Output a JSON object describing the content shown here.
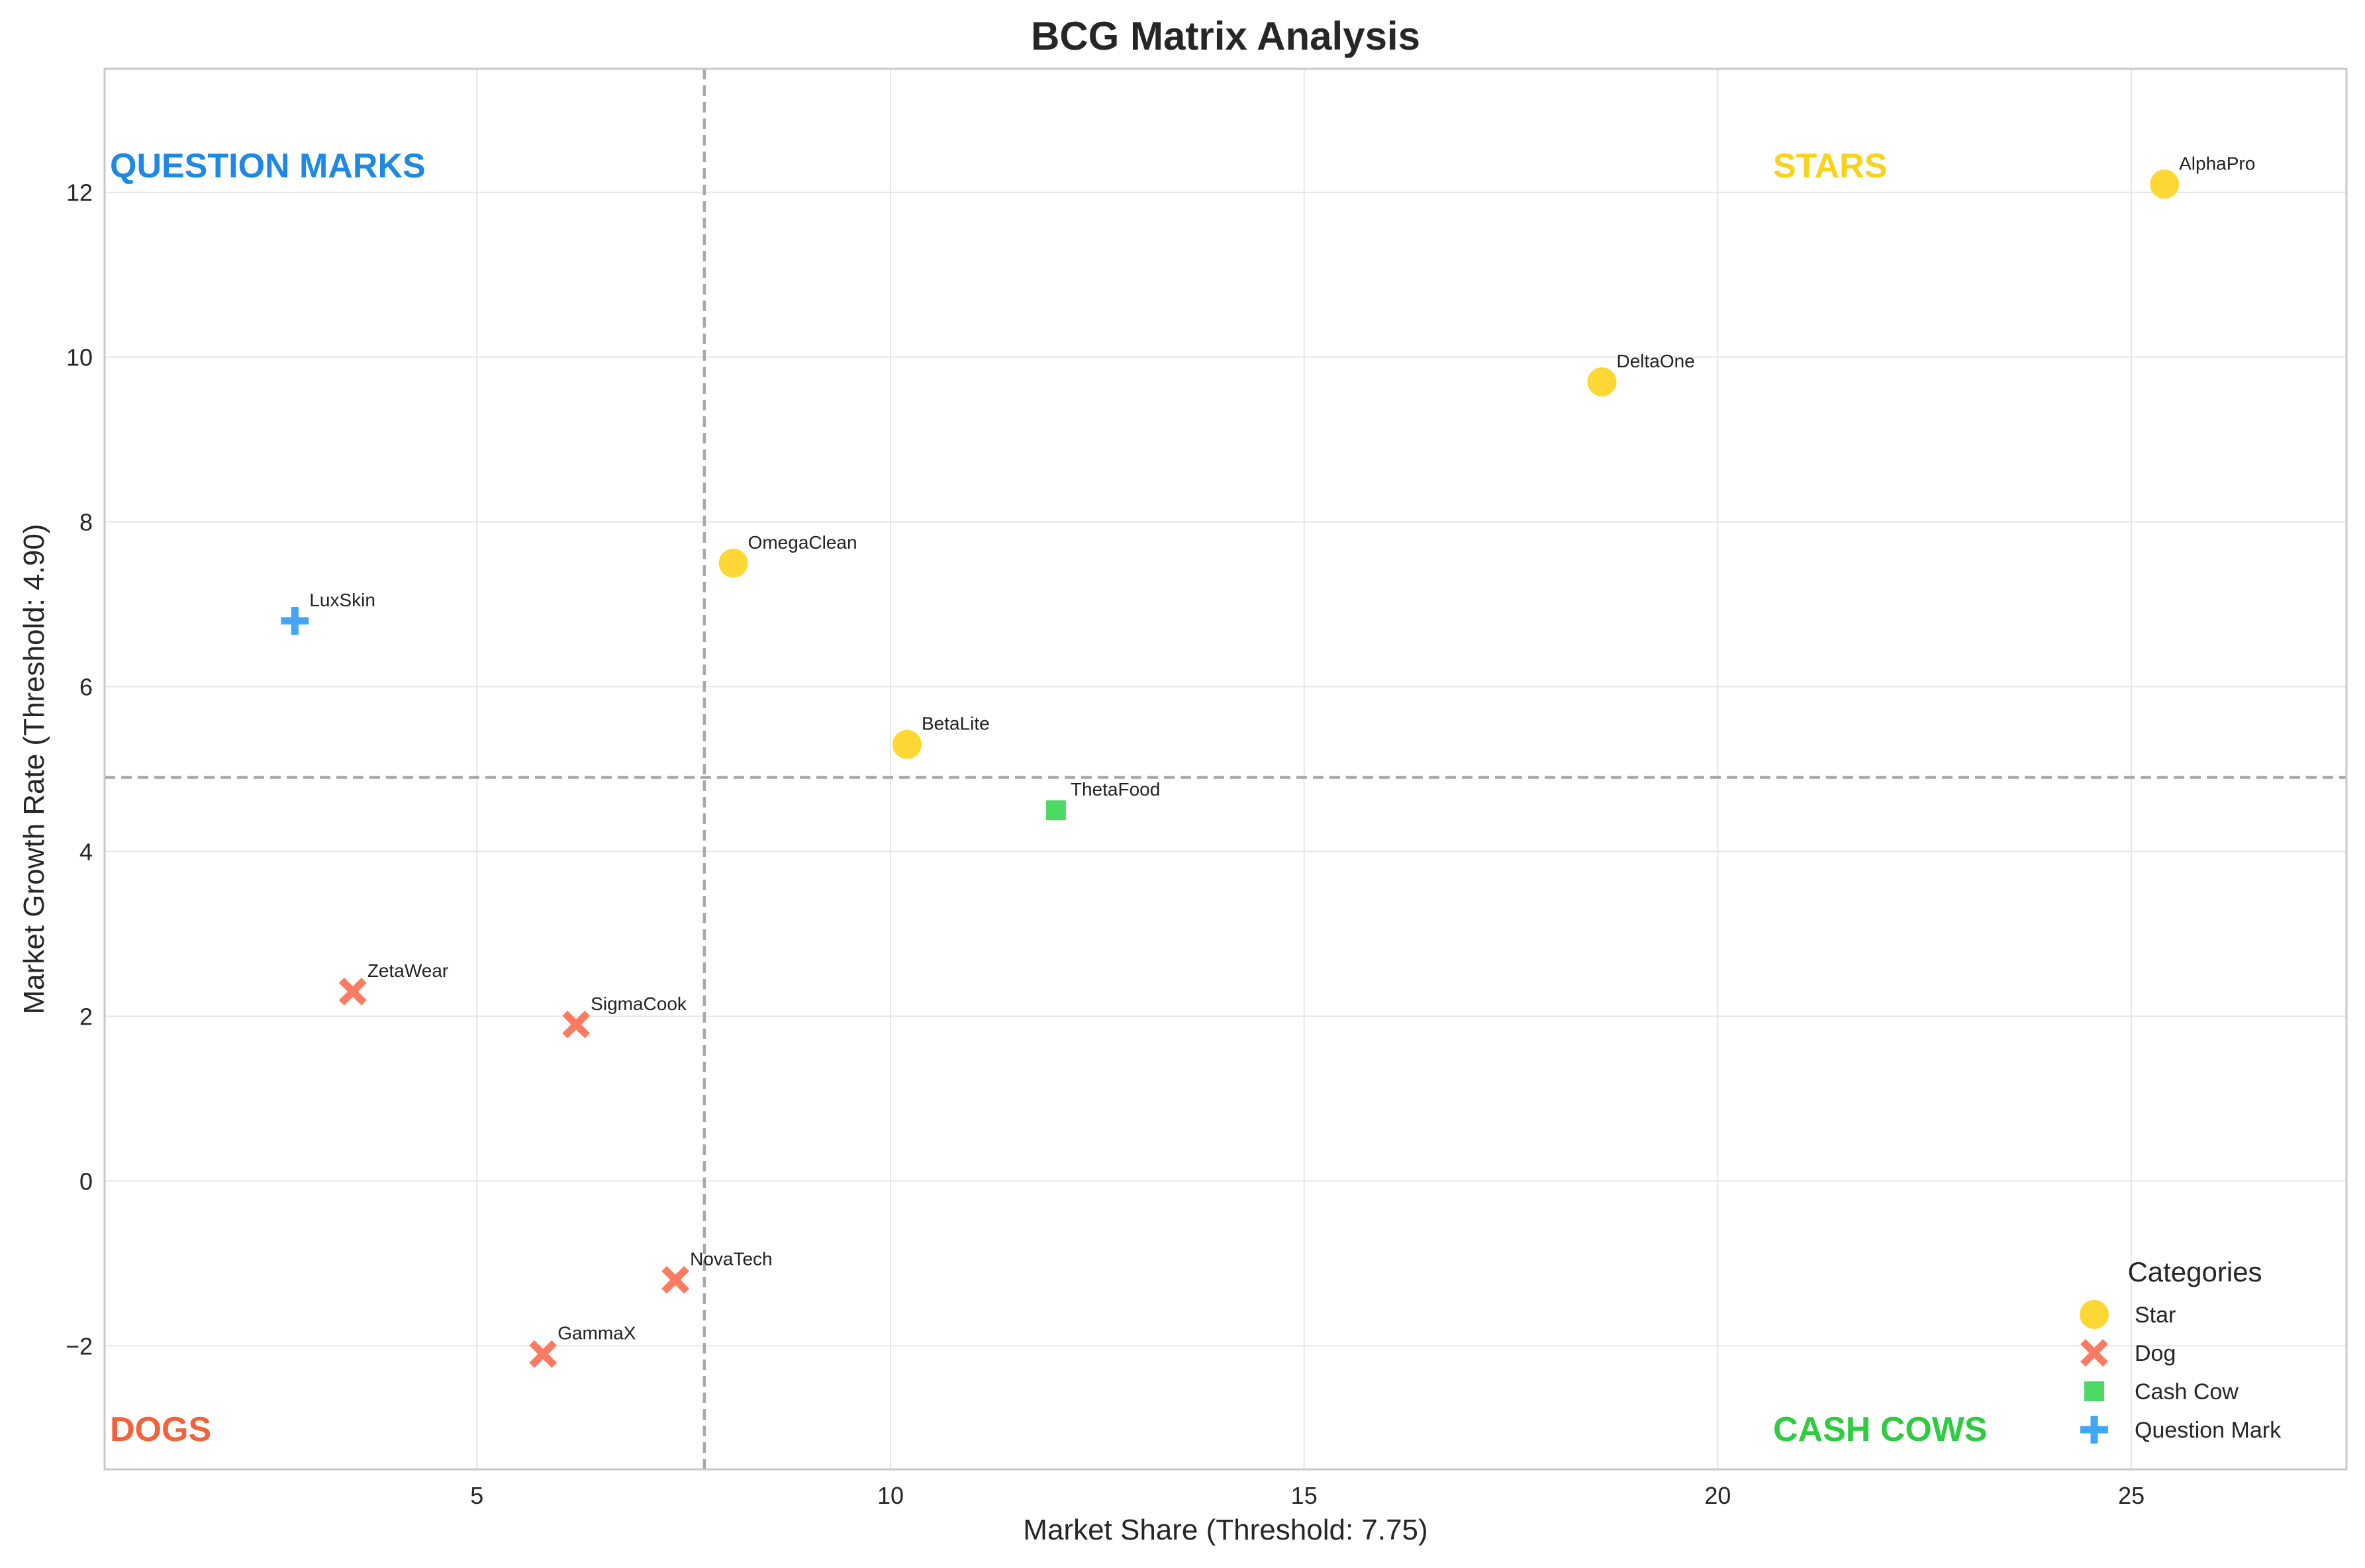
{
  "chart_data": {
    "type": "scatter",
    "title": "BCG Matrix Analysis",
    "xlabel": "Market Share (Threshold: 7.75)",
    "ylabel": "Market Growth Rate (Threshold: 4.90)",
    "xlim": [
      0.5,
      27.6
    ],
    "ylim": [
      -3.5,
      13.5
    ],
    "xticks": [
      5,
      10,
      15,
      20,
      25
    ],
    "yticks": [
      -2,
      0,
      2,
      4,
      6,
      8,
      10,
      12
    ],
    "grid": true,
    "thresholds": {
      "x": 7.75,
      "y": 4.9
    },
    "quadrant_labels": [
      {
        "text": "QUESTION MARKS",
        "color": "#1e88e5",
        "corner": "top-left"
      },
      {
        "text": "STARS",
        "color": "#f9d21b",
        "corner": "top-right"
      },
      {
        "text": "DOGS",
        "color": "#f4623a",
        "corner": "bottom-left"
      },
      {
        "text": "CASH COWS",
        "color": "#2ecc40",
        "corner": "bottom-right"
      }
    ],
    "categories": [
      {
        "name": "Star",
        "color": "#fdd835",
        "marker": "circle"
      },
      {
        "name": "Dog",
        "color": "#fa7b62",
        "marker": "x"
      },
      {
        "name": "Cash Cow",
        "color": "#4cd964",
        "marker": "square"
      },
      {
        "name": "Question Mark",
        "color": "#42a5f5",
        "marker": "plus"
      }
    ],
    "legend": {
      "title": "Categories",
      "placement": "bottom-right"
    },
    "points": [
      {
        "label": "AlphaPro",
        "x": 25.4,
        "y": 12.1,
        "category": "Star"
      },
      {
        "label": "DeltaOne",
        "x": 18.6,
        "y": 9.7,
        "category": "Star"
      },
      {
        "label": "OmegaClean",
        "x": 8.1,
        "y": 7.5,
        "category": "Star"
      },
      {
        "label": "BetaLite",
        "x": 10.2,
        "y": 5.3,
        "category": "Star"
      },
      {
        "label": "ThetaFood",
        "x": 12.0,
        "y": 4.5,
        "category": "Cash Cow"
      },
      {
        "label": "LuxSkin",
        "x": 2.8,
        "y": 6.8,
        "category": "Question Mark"
      },
      {
        "label": "ZetaWear",
        "x": 3.5,
        "y": 2.3,
        "category": "Dog"
      },
      {
        "label": "SigmaCook",
        "x": 6.2,
        "y": 1.9,
        "category": "Dog"
      },
      {
        "label": "NovaTech",
        "x": 7.4,
        "y": -1.2,
        "category": "Dog"
      },
      {
        "label": "GammaX",
        "x": 5.8,
        "y": -2.1,
        "category": "Dog"
      }
    ]
  }
}
